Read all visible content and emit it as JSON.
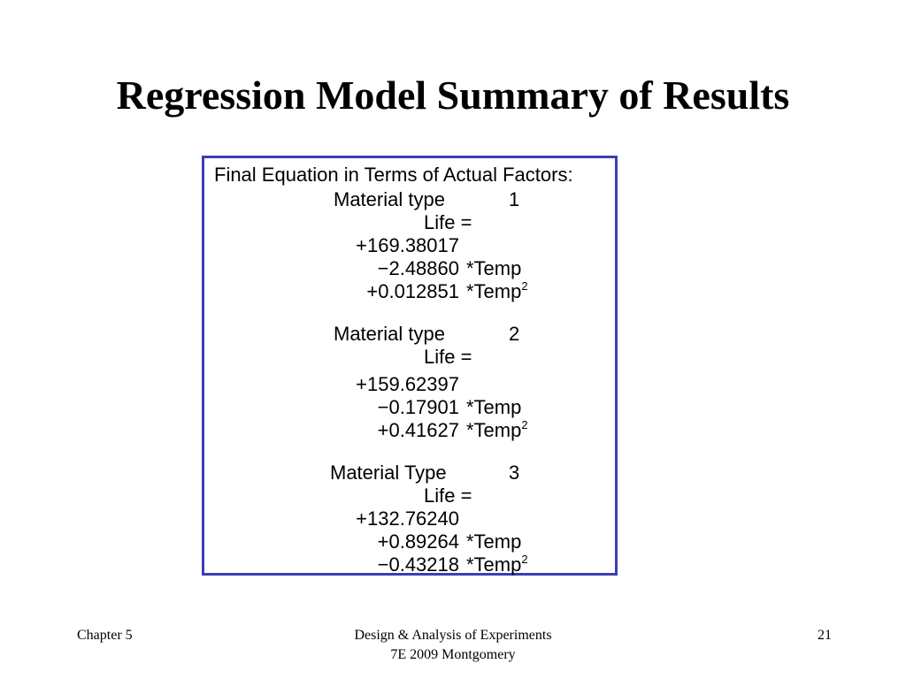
{
  "slide": {
    "title": "Regression Model Summary of Results"
  },
  "equations": {
    "header": "Final Equation in Terms of Actual Factors:",
    "life_label": "Life =",
    "temp_label": "*Temp",
    "temp2_label": "*Temp",
    "squared": "2",
    "blocks": [
      {
        "type_label": "Material type",
        "type_value": "1",
        "intercept": "+169.38017",
        "linear": "−2.48860",
        "quadratic": "+0.012851"
      },
      {
        "type_label": "Material type",
        "type_value": "2",
        "intercept": "+159.62397",
        "linear": "−0.17901",
        "quadratic": "+0.41627"
      },
      {
        "type_label": "Material Type",
        "type_value": "3",
        "intercept": "+132.76240",
        "linear": "+0.89264",
        "quadratic": "−0.43218"
      }
    ]
  },
  "footer": {
    "left": "Chapter 5",
    "center_line1": "Design & Analysis of Experiments",
    "center_line2": "7E 2009 Montgomery",
    "page_number": "21"
  }
}
